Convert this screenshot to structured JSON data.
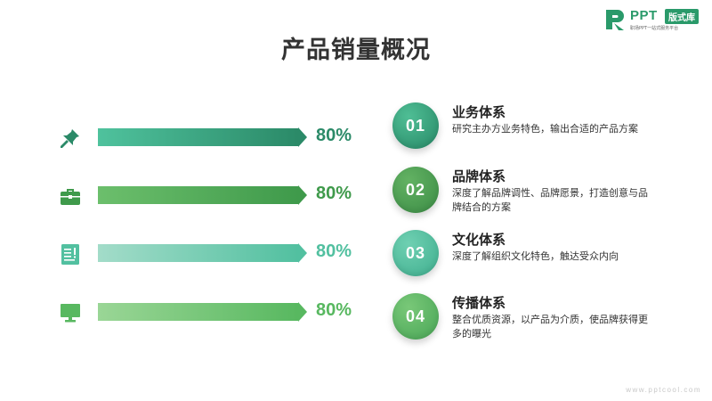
{
  "title": "产品销量概况",
  "logo": {
    "ppt": "PPT",
    "badge": "版式库",
    "subtitle": "职场PPT一站式服务平台"
  },
  "rows": [
    {
      "percent": "80%",
      "icon": "pushpin-icon",
      "fill": 0.8,
      "color_start": "#4fc29d",
      "color_end": "#2b8a68",
      "text_color": "#2b8a68"
    },
    {
      "percent": "80%",
      "icon": "briefcase-icon",
      "fill": 0.8,
      "color_start": "#6cbf6c",
      "color_end": "#3f9a4b",
      "text_color": "#3f9a4b"
    },
    {
      "percent": "80%",
      "icon": "document-icon",
      "fill": 0.8,
      "color_start": "#a3dcc9",
      "color_end": "#52c0a0",
      "text_color": "#52c0a0"
    },
    {
      "percent": "80%",
      "icon": "monitor-icon",
      "fill": 0.8,
      "color_start": "#9ad696",
      "color_end": "#58b860",
      "text_color": "#58b860"
    }
  ],
  "items": [
    {
      "num": "01",
      "title": "业务体系",
      "desc": "研究主办方业务特色，输出合适的产品方案",
      "color_light": "#4fbe95",
      "color_dark": "#278866"
    },
    {
      "num": "02",
      "title": "品牌体系",
      "desc": "深度了解品牌调性、品牌愿景，打造创意与品牌结合的方案",
      "color_light": "#63b263",
      "color_dark": "#3b8c45"
    },
    {
      "num": "03",
      "title": "文化体系",
      "desc": "深度了解组织文化特色，触达受众内向",
      "color_light": "#6fd0b2",
      "color_dark": "#3fae8e"
    },
    {
      "num": "04",
      "title": "传播体系",
      "desc": "整合优质资源，以产品为介质，使品牌获得更多的曝光",
      "color_light": "#79c878",
      "color_dark": "#48a556"
    }
  ],
  "footer": "www.pptcool.com"
}
